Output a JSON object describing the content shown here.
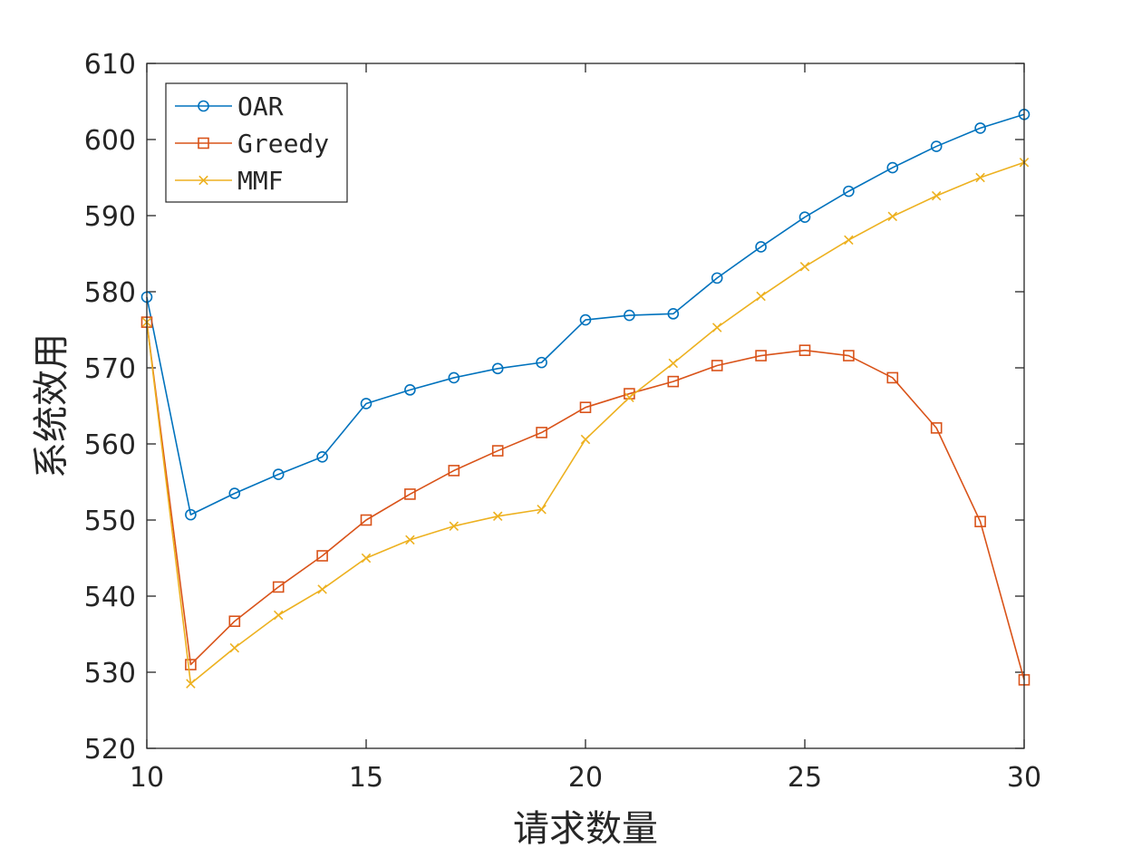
{
  "chart_data": {
    "type": "line",
    "title": "",
    "xlabel": "请求数量",
    "ylabel": "系统效用",
    "xlim": [
      10,
      30
    ],
    "ylim": [
      520,
      610
    ],
    "xticks": [
      10,
      15,
      20,
      25,
      30
    ],
    "yticks": [
      520,
      530,
      540,
      550,
      560,
      570,
      580,
      590,
      600,
      610
    ],
    "grid": false,
    "legend_position": "top-left",
    "x": [
      10,
      11,
      12,
      13,
      14,
      15,
      16,
      17,
      18,
      19,
      20,
      21,
      22,
      23,
      24,
      25,
      26,
      27,
      28,
      29,
      30
    ],
    "series": [
      {
        "name": "OAR",
        "color": "#0072BD",
        "marker": "circle",
        "values": [
          579.3,
          550.7,
          553.5,
          556.0,
          558.3,
          565.3,
          567.1,
          568.7,
          569.9,
          570.7,
          576.3,
          576.9,
          577.1,
          581.8,
          585.9,
          589.8,
          593.2,
          596.3,
          599.1,
          601.5,
          603.3
        ]
      },
      {
        "name": "Greedy",
        "color": "#D95319",
        "marker": "square",
        "values": [
          576.0,
          531.0,
          536.7,
          541.2,
          545.3,
          550.0,
          553.4,
          556.5,
          559.1,
          561.5,
          564.8,
          566.6,
          568.2,
          570.3,
          571.6,
          572.3,
          571.6,
          568.7,
          562.1,
          549.8,
          529.0
        ]
      },
      {
        "name": "MMF",
        "color": "#EDB120",
        "marker": "x",
        "values": [
          576.0,
          528.5,
          533.2,
          537.5,
          540.9,
          545.0,
          547.4,
          549.2,
          550.5,
          551.4,
          560.6,
          566.1,
          570.6,
          575.3,
          579.4,
          583.3,
          586.8,
          589.9,
          592.6,
          595.0,
          597.0
        ]
      }
    ]
  }
}
